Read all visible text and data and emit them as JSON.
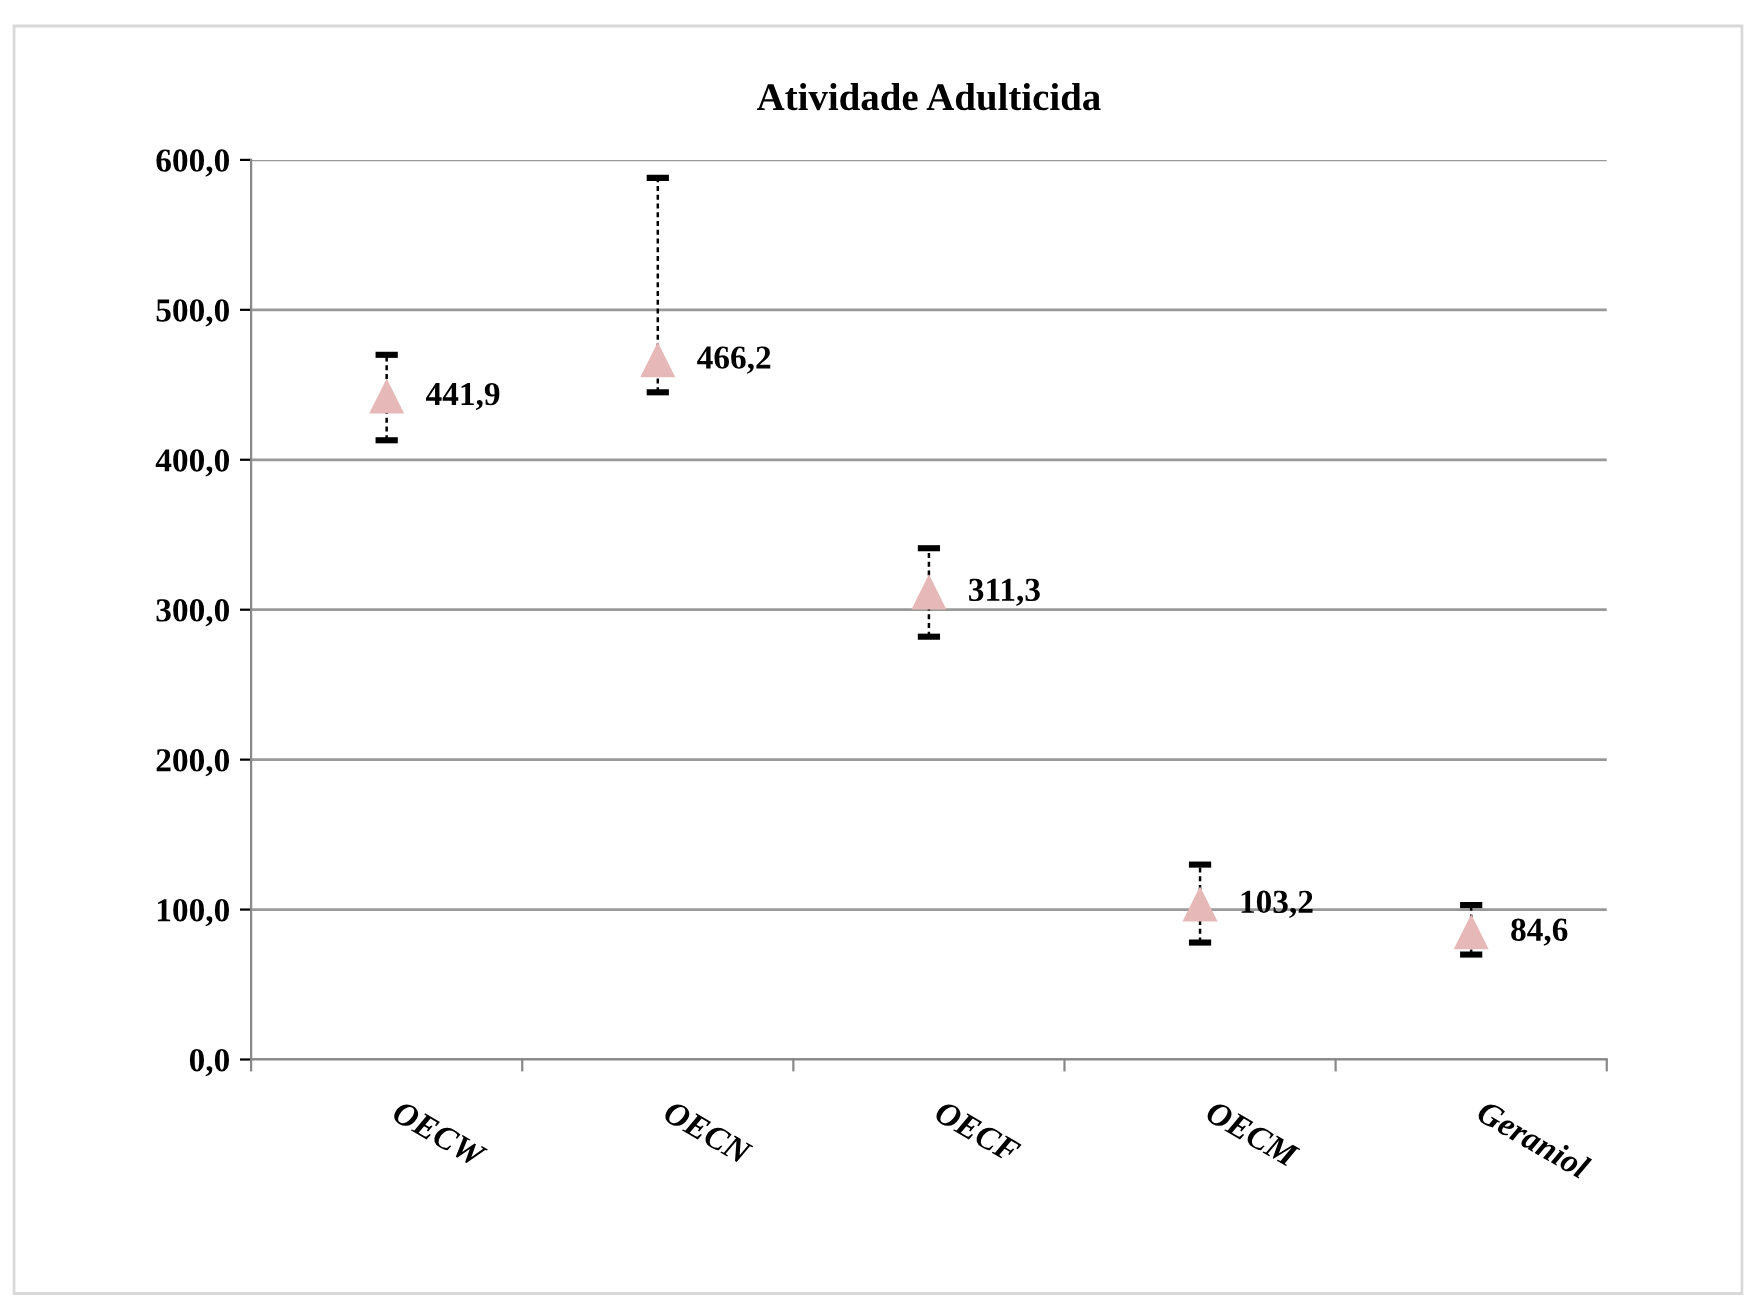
{
  "chart_data": {
    "type": "scatter",
    "title": "Atividade Adulticida",
    "categories": [
      "OECW",
      "OECN",
      "OECF",
      "OECM",
      "Geraniol"
    ],
    "series": [
      {
        "color": "#e6b8b7",
        "values": [
          441.9,
          466.2,
          311.3,
          103.2,
          84.6
        ],
        "value_labels": [
          "441,9",
          "466,2",
          "311,3",
          "103,2",
          "84,6"
        ],
        "errors": [
          [
            413,
            470
          ],
          [
            445,
            588
          ],
          [
            282,
            341
          ],
          [
            78,
            130
          ],
          [
            70,
            103
          ]
        ]
      }
    ],
    "marker": "triangle",
    "ylim": [
      0,
      600
    ],
    "yticks": [
      {
        "value": 0,
        "label": "0,0"
      },
      {
        "value": 100,
        "label": "100,0"
      },
      {
        "value": 200,
        "label": "200,0"
      },
      {
        "value": 300,
        "label": "300,0"
      },
      {
        "value": 400,
        "label": "400,0"
      },
      {
        "value": 500,
        "label": "500,0"
      },
      {
        "value": 600,
        "label": "600,0"
      }
    ],
    "grid": "y",
    "legend": false
  }
}
